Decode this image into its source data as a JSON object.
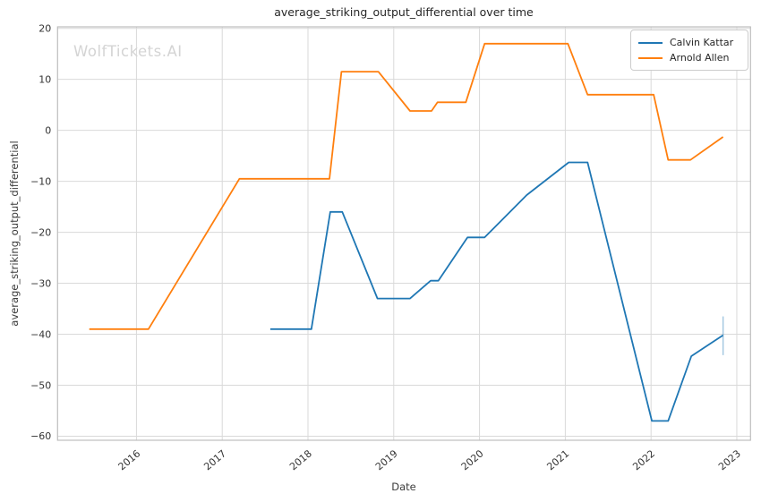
{
  "chart_data": {
    "type": "line",
    "title": "average_striking_output_differential over time",
    "xlabel": "Date",
    "ylabel": "average_striking_output_differential",
    "watermark": "WolfTickets.AI",
    "legend_position": "upper right",
    "grid": true,
    "xlim": [
      2015.08,
      2023.16
    ],
    "ylim": [
      -60.8,
      20.3
    ],
    "xticks": [
      2016,
      2017,
      2018,
      2019,
      2020,
      2021,
      2022,
      2023
    ],
    "yticks": [
      20,
      10,
      0,
      -10,
      -20,
      -30,
      -40,
      -50,
      -60
    ],
    "colors": {
      "grid": "#d9d9d9",
      "spine": "#bdbdbd",
      "tick_label": "#333333",
      "watermark": "#d4d4d4"
    },
    "series": [
      {
        "name": "Calvin Kattar",
        "color": "#1f77b4",
        "points": [
          [
            2017.56,
            -39
          ],
          [
            2018.04,
            -39
          ],
          [
            2018.26,
            -16
          ],
          [
            2018.4,
            -16
          ],
          [
            2018.81,
            -33
          ],
          [
            2019.19,
            -33
          ],
          [
            2019.43,
            -29.5
          ],
          [
            2019.52,
            -29.5
          ],
          [
            2019.86,
            -21
          ],
          [
            2020.06,
            -21
          ],
          [
            2020.55,
            -12.7
          ],
          [
            2021.04,
            -6.3
          ],
          [
            2021.26,
            -6.3
          ],
          [
            2022.01,
            -57
          ],
          [
            2022.2,
            -57
          ],
          [
            2022.47,
            -44.3
          ],
          [
            2022.84,
            -40.2
          ]
        ]
      },
      {
        "name": "Arnold Allen",
        "color": "#ff7f0e",
        "points": [
          [
            2015.45,
            -39
          ],
          [
            2016.14,
            -39
          ],
          [
            2017.2,
            -9.5
          ],
          [
            2018.25,
            -9.5
          ],
          [
            2018.39,
            11.5
          ],
          [
            2018.82,
            11.5
          ],
          [
            2019.19,
            3.8
          ],
          [
            2019.44,
            3.8
          ],
          [
            2019.51,
            5.5
          ],
          [
            2019.84,
            5.5
          ],
          [
            2020.06,
            17
          ],
          [
            2021.03,
            17
          ],
          [
            2021.26,
            7
          ],
          [
            2022.03,
            7
          ],
          [
            2022.2,
            -5.8
          ],
          [
            2022.46,
            -5.8
          ],
          [
            2022.84,
            -1.3
          ]
        ]
      }
    ],
    "error_bar": {
      "series": "Calvin Kattar",
      "x": 2022.84,
      "y_low": -44.1,
      "y_high": -36.5,
      "color": "#1f77b4",
      "opacity": 0.4
    }
  }
}
